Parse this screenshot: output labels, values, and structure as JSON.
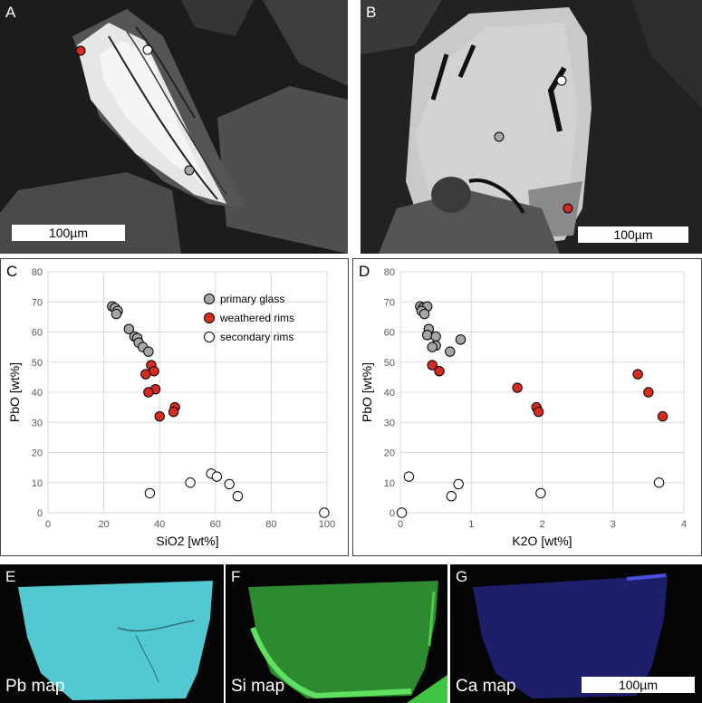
{
  "panels": {
    "A": {
      "label": "A",
      "scale": "100µm"
    },
    "B": {
      "label": "B",
      "scale": "100µm"
    },
    "C": {
      "label": "C"
    },
    "D": {
      "label": "D"
    },
    "E": {
      "label": "E",
      "map": "Pb map"
    },
    "F": {
      "label": "F",
      "map": "Si map"
    },
    "G": {
      "label": "G",
      "map": "Ca map",
      "scale": "100µm"
    }
  },
  "colors": {
    "primary": "#a6a6a6",
    "weathered": "#d62a22",
    "secondary": "#ffffff",
    "pb": "#52c9d2",
    "si": "#2f9a31",
    "ca": "#2a2b8e"
  },
  "chart_data": [
    {
      "type": "scatter",
      "panel": "C",
      "xlabel": "SiO2 [wt%]",
      "ylabel": "PbO [wt%]",
      "xlim": [
        0,
        100
      ],
      "ylim": [
        0,
        80
      ],
      "xticks": [
        0,
        20,
        40,
        60,
        80,
        100
      ],
      "yticks": [
        0,
        10,
        20,
        30,
        40,
        50,
        60,
        70,
        80
      ],
      "grid": true,
      "legend": "top-right",
      "series": [
        {
          "name": "primary glass",
          "color_key": "primary",
          "points": [
            [
              23,
              68.5
            ],
            [
              24,
              68
            ],
            [
              25,
              67
            ],
            [
              24.5,
              66
            ],
            [
              29,
              61
            ],
            [
              31,
              58.5
            ],
            [
              32,
              58
            ],
            [
              32.5,
              56.5
            ],
            [
              34,
              55
            ],
            [
              36,
              53.5
            ]
          ]
        },
        {
          "name": "weathered rims",
          "color_key": "weathered",
          "points": [
            [
              37,
              49
            ],
            [
              38,
              47
            ],
            [
              35,
              46
            ],
            [
              38.5,
              41
            ],
            [
              36,
              40
            ],
            [
              45.5,
              35
            ],
            [
              45,
              33.5
            ],
            [
              40,
              32
            ]
          ]
        },
        {
          "name": "secondary rims",
          "color_key": "secondary",
          "points": [
            [
              58.5,
              13
            ],
            [
              60.5,
              12
            ],
            [
              65,
              9.5
            ],
            [
              68,
              5.5
            ],
            [
              51,
              10
            ],
            [
              36.5,
              6.5
            ],
            [
              99,
              0
            ]
          ]
        }
      ]
    },
    {
      "type": "scatter",
      "panel": "D",
      "xlabel": "K2O [wt%]",
      "ylabel": "PbO [wt%]",
      "xlim": [
        0,
        4
      ],
      "ylim": [
        0,
        80
      ],
      "xticks": [
        0,
        1,
        2,
        3,
        4
      ],
      "yticks": [
        0,
        10,
        20,
        30,
        40,
        50,
        60,
        70,
        80
      ],
      "grid": true,
      "series": [
        {
          "name": "primary glass",
          "color_key": "primary",
          "points": [
            [
              0.28,
              68.5
            ],
            [
              0.32,
              68
            ],
            [
              0.38,
              68.5
            ],
            [
              0.3,
              67
            ],
            [
              0.34,
              66
            ],
            [
              0.4,
              61
            ],
            [
              0.38,
              59
            ],
            [
              0.5,
              58.5
            ],
            [
              0.5,
              55.5
            ],
            [
              0.45,
              55
            ],
            [
              0.85,
              57.5
            ],
            [
              0.7,
              53.5
            ]
          ]
        },
        {
          "name": "weathered rims",
          "color_key": "weathered",
          "points": [
            [
              0.45,
              49
            ],
            [
              0.55,
              47
            ],
            [
              1.65,
              41.5
            ],
            [
              1.92,
              35
            ],
            [
              1.95,
              33.5
            ],
            [
              3.35,
              46
            ],
            [
              3.5,
              40
            ],
            [
              3.7,
              32
            ]
          ]
        },
        {
          "name": "secondary rims",
          "color_key": "secondary",
          "points": [
            [
              0.12,
              12
            ],
            [
              0.02,
              0
            ],
            [
              0.72,
              5.5
            ],
            [
              0.82,
              9.5
            ],
            [
              1.98,
              6.5
            ],
            [
              3.65,
              10
            ]
          ]
        }
      ]
    }
  ]
}
